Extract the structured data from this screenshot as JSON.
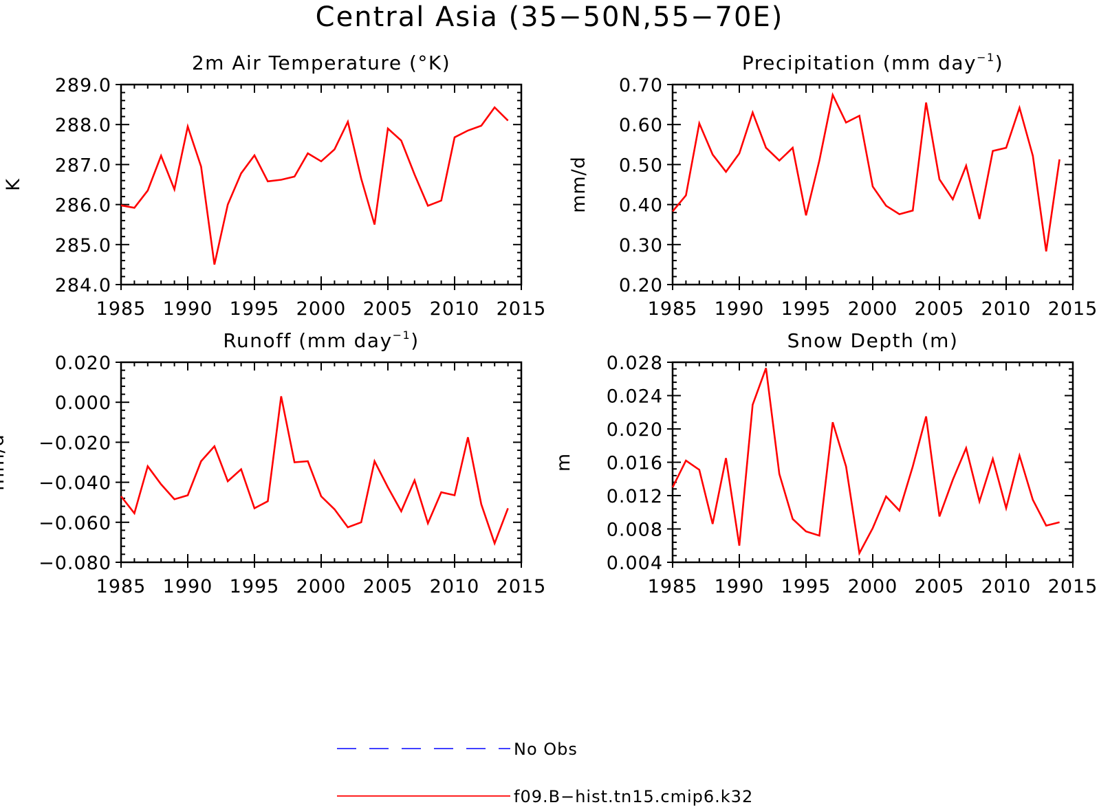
{
  "title": "Central Asia (35−50N,55−70E)",
  "colors": {
    "model": "#ff0000",
    "obs": "#0000ff"
  },
  "legend": [
    {
      "label": "No Obs",
      "color": "#0000ff",
      "style": "dashed"
    },
    {
      "label": "f09.B−hist.tn15.cmip6.k32",
      "color": "#ff0000",
      "style": "solid"
    }
  ],
  "chart_data": [
    {
      "type": "line",
      "title": "2m Air Temperature (°K)",
      "title_main": "2m Air Temperature (°K)",
      "title_sup": "",
      "title_end": "",
      "ylabel": "K",
      "xlim": [
        1985,
        2015
      ],
      "ylim": [
        284.0,
        289.0
      ],
      "xticks": [
        1985,
        1990,
        1995,
        2000,
        2005,
        2010,
        2015
      ],
      "yticks": [
        "284.0",
        "285.0",
        "286.0",
        "287.0",
        "288.0",
        "289.0"
      ],
      "x": [
        1985,
        1986,
        1987,
        1988,
        1989,
        1990,
        1991,
        1992,
        1993,
        1994,
        1995,
        1996,
        1997,
        1998,
        1999,
        2000,
        2001,
        2002,
        2003,
        2004,
        2005,
        2006,
        2007,
        2008,
        2009,
        2010,
        2011,
        2012,
        2013,
        2014
      ],
      "series": [
        {
          "name": "f09.B−hist.tn15.cmip6.k32",
          "values": [
            285.98,
            285.92,
            286.35,
            287.22,
            286.38,
            287.95,
            286.95,
            284.5,
            286.0,
            286.78,
            287.23,
            286.58,
            286.62,
            286.7,
            287.28,
            287.08,
            287.38,
            288.07,
            286.65,
            285.5,
            287.9,
            287.6,
            286.75,
            285.97,
            286.1,
            287.68,
            287.85,
            287.97,
            288.43,
            288.1
          ]
        }
      ]
    },
    {
      "type": "line",
      "title": "Precipitation (mm day⁻¹)",
      "title_main": "Precipitation (mm day",
      "title_sup": "−1",
      "title_end": ")",
      "ylabel": "mm/d",
      "xlim": [
        1985,
        2015
      ],
      "ylim": [
        0.2,
        0.7
      ],
      "xticks": [
        1985,
        1990,
        1995,
        2000,
        2005,
        2010,
        2015
      ],
      "yticks": [
        "0.20",
        "0.30",
        "0.40",
        "0.50",
        "0.60",
        "0.70"
      ],
      "x": [
        1985,
        1986,
        1987,
        1988,
        1989,
        1990,
        1991,
        1992,
        1993,
        1994,
        1995,
        1996,
        1997,
        1998,
        1999,
        2000,
        2001,
        2002,
        2003,
        2004,
        2005,
        2006,
        2007,
        2008,
        2009,
        2010,
        2011,
        2012,
        2013,
        2014
      ],
      "series": [
        {
          "name": "f09.B−hist.tn15.cmip6.k32",
          "values": [
            0.383,
            0.423,
            0.603,
            0.525,
            0.482,
            0.528,
            0.63,
            0.542,
            0.51,
            0.542,
            0.373,
            0.51,
            0.674,
            0.605,
            0.622,
            0.445,
            0.397,
            0.376,
            0.385,
            0.655,
            0.463,
            0.413,
            0.497,
            0.364,
            0.534,
            0.542,
            0.642,
            0.522,
            0.283,
            0.513
          ]
        }
      ]
    },
    {
      "type": "line",
      "title": "Runoff (mm day⁻¹)",
      "title_main": "Runoff (mm day",
      "title_sup": "−1",
      "title_end": ")",
      "ylabel": "mm/d",
      "xlim": [
        1985,
        2015
      ],
      "ylim": [
        -0.08,
        0.02
      ],
      "xticks": [
        1985,
        1990,
        1995,
        2000,
        2005,
        2010,
        2015
      ],
      "yticks": [
        "−0.080",
        "−0.060",
        "−0.040",
        "−0.020",
        "0.000",
        "0.020"
      ],
      "x": [
        1985,
        1986,
        1987,
        1988,
        1989,
        1990,
        1991,
        1992,
        1993,
        1994,
        1995,
        1996,
        1997,
        1998,
        1999,
        2000,
        2001,
        2002,
        2003,
        2004,
        2005,
        2006,
        2007,
        2008,
        2009,
        2010,
        2011,
        2012,
        2013,
        2014
      ],
      "series": [
        {
          "name": "f09.B−hist.tn15.cmip6.k32",
          "values": [
            -0.047,
            -0.0555,
            -0.032,
            -0.041,
            -0.0485,
            -0.0465,
            -0.0295,
            -0.022,
            -0.0395,
            -0.0335,
            -0.053,
            -0.0495,
            0.003,
            -0.03,
            -0.0295,
            -0.047,
            -0.0535,
            -0.0625,
            -0.06,
            -0.0295,
            -0.0425,
            -0.0545,
            -0.039,
            -0.0605,
            -0.045,
            -0.0465,
            -0.0175,
            -0.051,
            -0.0705,
            -0.053
          ]
        }
      ]
    },
    {
      "type": "line",
      "title": "Snow Depth (m)",
      "title_main": "Snow Depth (m)",
      "title_sup": "",
      "title_end": "",
      "ylabel": "m",
      "xlim": [
        1985,
        2015
      ],
      "ylim": [
        0.004,
        0.028
      ],
      "xticks": [
        1985,
        1990,
        1995,
        2000,
        2005,
        2010,
        2015
      ],
      "yticks": [
        "0.004",
        "0.008",
        "0.012",
        "0.016",
        "0.020",
        "0.024",
        "0.028"
      ],
      "x": [
        1985,
        1986,
        1987,
        1988,
        1989,
        1990,
        1991,
        1992,
        1993,
        1994,
        1995,
        1996,
        1997,
        1998,
        1999,
        2000,
        2001,
        2002,
        2003,
        2004,
        2005,
        2006,
        2007,
        2008,
        2009,
        2010,
        2011,
        2012,
        2013,
        2014
      ],
      "series": [
        {
          "name": "f09.B−hist.tn15.cmip6.k32",
          "values": [
            0.013,
            0.0162,
            0.0151,
            0.0086,
            0.0165,
            0.006,
            0.0229,
            0.0273,
            0.0146,
            0.0092,
            0.0077,
            0.0072,
            0.0208,
            0.0155,
            0.0051,
            0.0081,
            0.0119,
            0.0102,
            0.0155,
            0.0215,
            0.0095,
            0.0139,
            0.0177,
            0.0113,
            0.0164,
            0.0105,
            0.0168,
            0.0115,
            0.0084,
            0.0088
          ]
        }
      ]
    }
  ]
}
